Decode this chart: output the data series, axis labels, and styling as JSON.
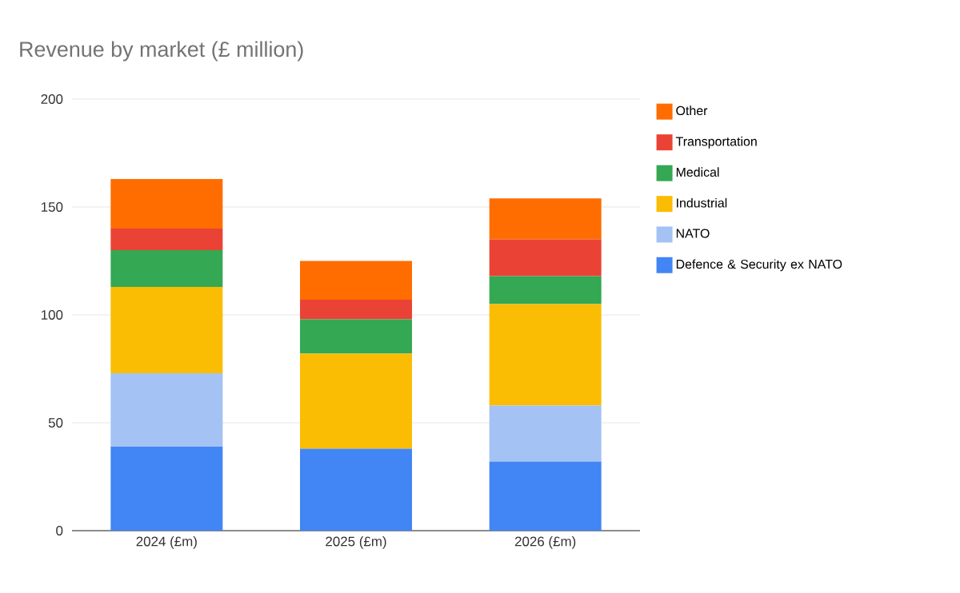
{
  "chart_data": {
    "type": "bar",
    "title": "Revenue by market (£ million)",
    "categories": [
      "2024 (£m)",
      "2025 (£m)",
      "2026 (£m)"
    ],
    "stacked": true,
    "series": [
      {
        "name": "Defence & Security ex NATO",
        "color": "#4285f4",
        "values": [
          39,
          38,
          32
        ]
      },
      {
        "name": "NATO",
        "color": "#a4c2f4",
        "values": [
          34,
          0,
          26
        ]
      },
      {
        "name": "Industrial",
        "color": "#fbbc04",
        "values": [
          40,
          44,
          47
        ]
      },
      {
        "name": "Medical",
        "color": "#34a853",
        "values": [
          17,
          16,
          13
        ]
      },
      {
        "name": "Transportation",
        "color": "#ea4335",
        "values": [
          10,
          9,
          17
        ]
      },
      {
        "name": "Other",
        "color": "#ff6d01",
        "values": [
          23,
          18,
          19
        ]
      }
    ],
    "ylim": [
      0,
      200
    ],
    "yticks": [
      0,
      50,
      100,
      150,
      200
    ],
    "grid": "y",
    "legend": "right"
  }
}
